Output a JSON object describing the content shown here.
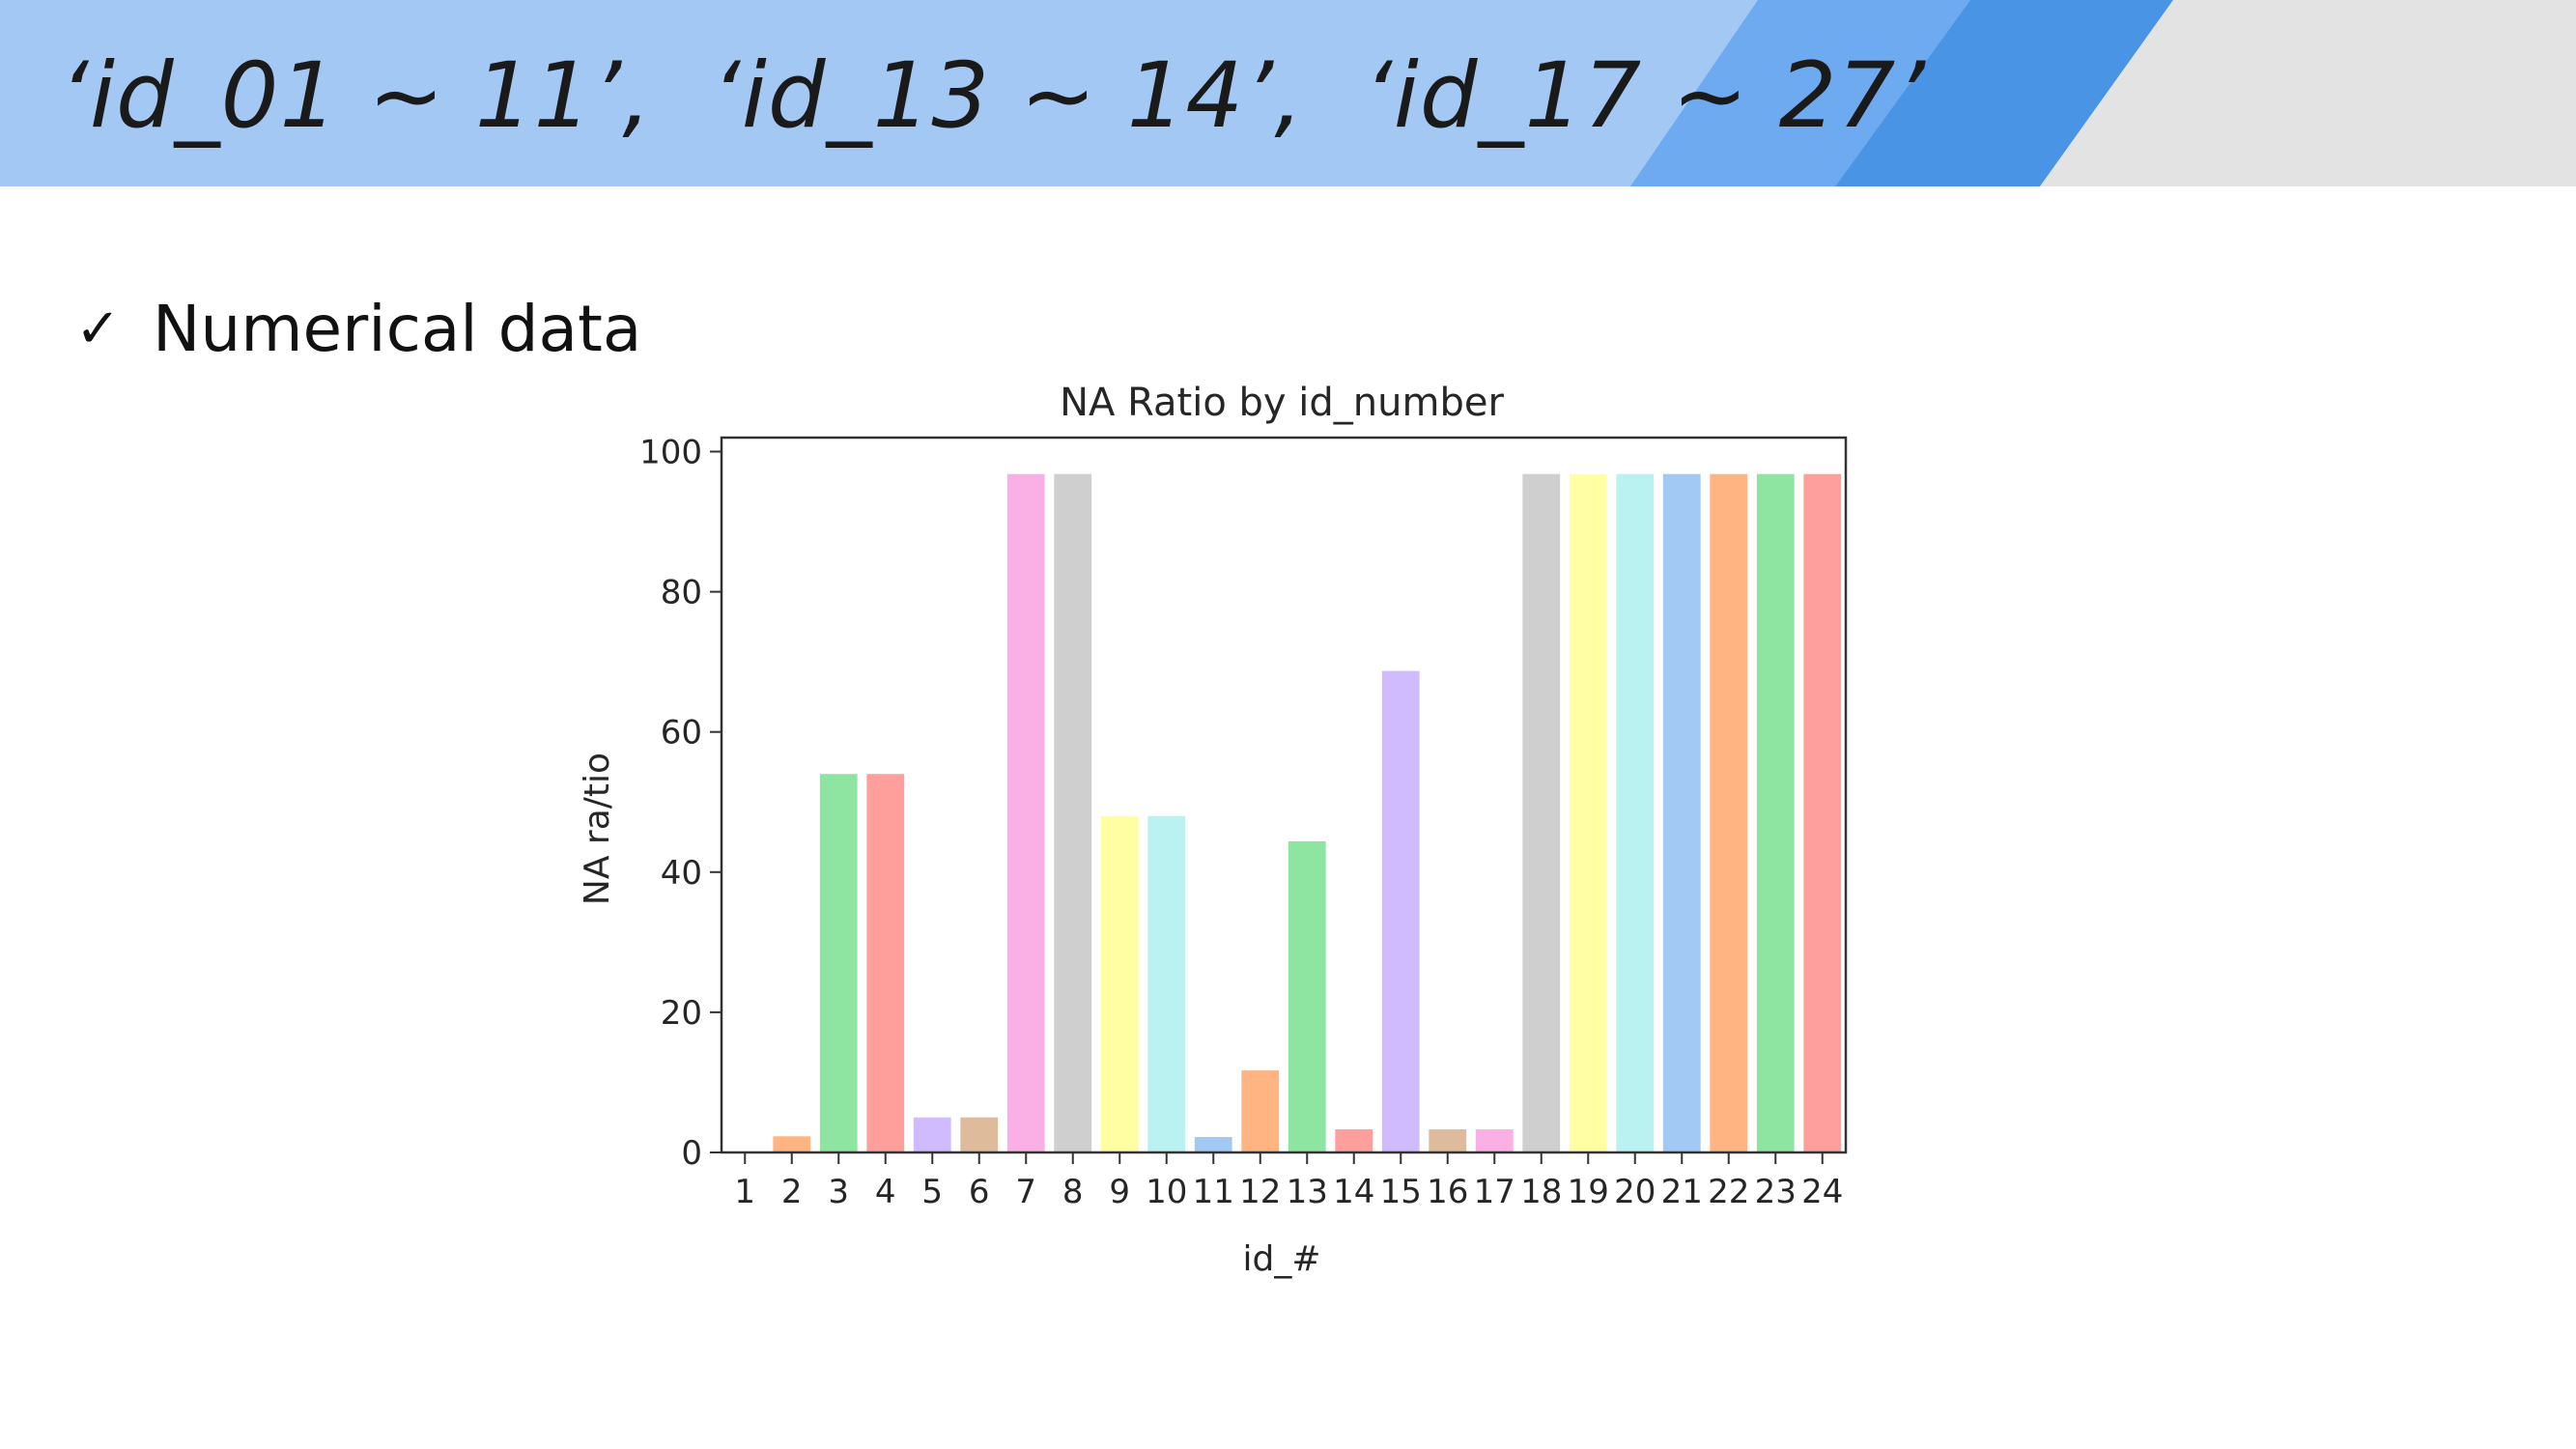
{
  "slide": {
    "title": "‘id_01 ~ 11’,  ‘id_13 ~ 14’,  ‘id_17 ~ 27’",
    "bullet_icon": "check-icon",
    "bullet_text": "Numerical data"
  },
  "colors": {
    "header_light": "#a3c8f3",
    "header_mid": "#6eaaef",
    "header_dark": "#4a94e6",
    "header_gray": "#e3e3e3"
  },
  "chart_data": {
    "type": "bar",
    "title": "NA Ratio by id_number",
    "xlabel": "id_#",
    "ylabel": "NA ra/tio",
    "ylim": [
      0,
      100
    ],
    "yticks": [
      0,
      20,
      40,
      60,
      80,
      100
    ],
    "grid": false,
    "categories": [
      "1",
      "2",
      "3",
      "4",
      "5",
      "6",
      "7",
      "8",
      "9",
      "10",
      "11",
      "12",
      "13",
      "14",
      "15",
      "16",
      "17",
      "18",
      "19",
      "20",
      "21",
      "22",
      "23",
      "24"
    ],
    "values": [
      0,
      2.3,
      54.0,
      54.0,
      5.0,
      5.0,
      96.8,
      96.8,
      48.0,
      48.0,
      2.2,
      11.7,
      44.4,
      3.3,
      68.7,
      3.3,
      3.3,
      96.8,
      96.8,
      96.8,
      96.8,
      96.8,
      96.8,
      96.8
    ],
    "bar_colors": [
      "#a1c9f4",
      "#ffb482",
      "#8de5a1",
      "#ff9f9b",
      "#d0bbff",
      "#debb9b",
      "#fab0e4",
      "#cfcfcf",
      "#fffea3",
      "#b9f2f0",
      "#a1c9f4",
      "#ffb482",
      "#8de5a1",
      "#ff9f9b",
      "#d0bbff",
      "#debb9b",
      "#fab0e4",
      "#cfcfcf",
      "#fffea3",
      "#b9f2f0",
      "#a1c9f4",
      "#ffb482",
      "#8de5a1",
      "#ff9f9b"
    ]
  }
}
